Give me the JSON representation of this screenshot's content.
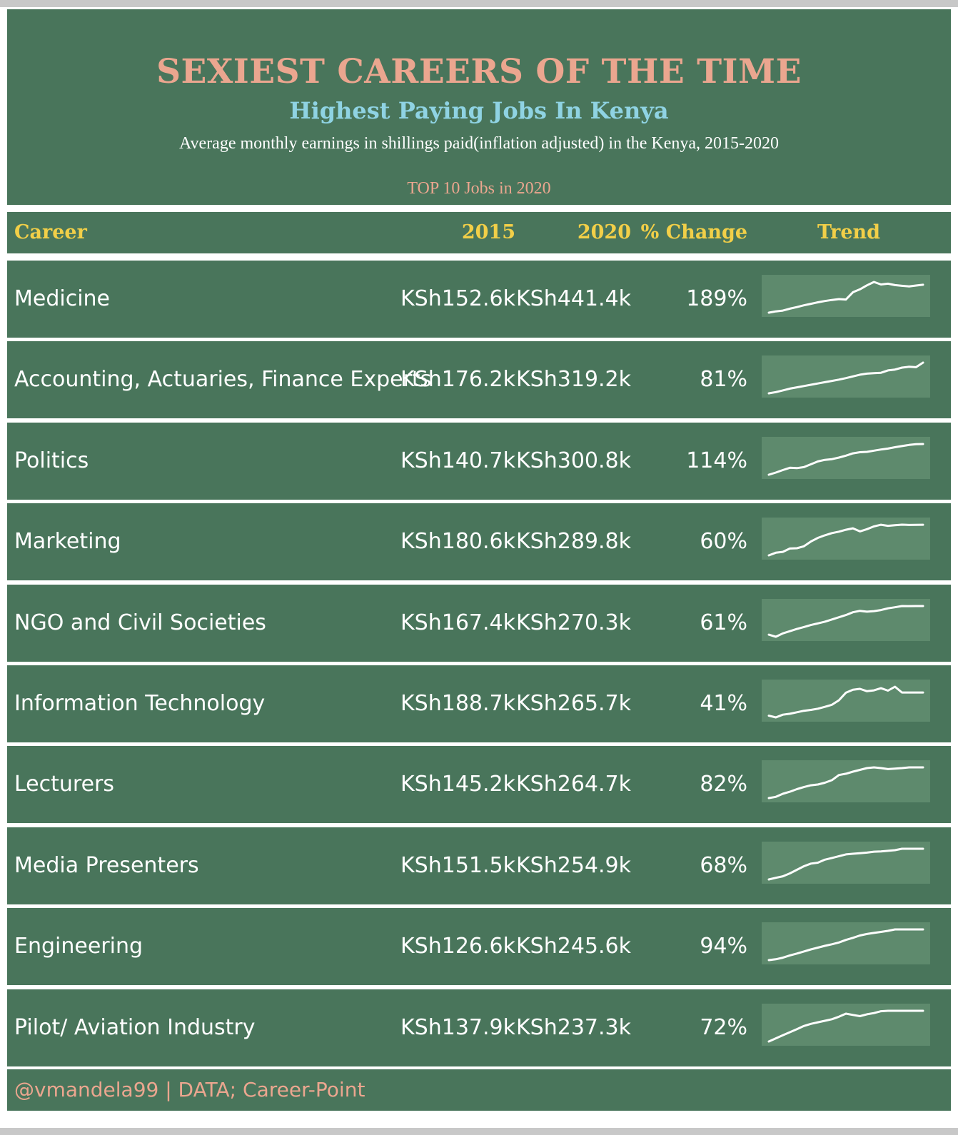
{
  "header": {
    "title": "SEXIEST CAREERS OF THE TIME",
    "subtitle": "Highest Paying Jobs In Kenya",
    "description": "Average monthly earnings in shillings paid(inflation adjusted) in the Kenya, 2015-2020",
    "top_label": "TOP 10 Jobs in 2020"
  },
  "columns": {
    "career": "Career",
    "y2015": "2015",
    "y2020": "2020",
    "change": "% Change",
    "trend": "Trend"
  },
  "footer": "@vmandela99 | DATA; Career-Point",
  "colors": {
    "background": "#49755b",
    "title": "#eba68f",
    "subtitle": "#8fd3e3",
    "column_header": "#f2cf48",
    "sparkline_bg": "#5e8a6d",
    "sparkline_line": "#ffffff"
  },
  "chart_data": {
    "type": "table",
    "title": "SEXIEST CAREERS OF THE TIME",
    "subtitle": "Highest Paying Jobs In Kenya",
    "columns": [
      "Career",
      "2015",
      "2020",
      "% Change",
      "Trend"
    ],
    "rows": [
      {
        "career": "Medicine",
        "y2015": "KSh152.6k",
        "y2020": "KSh441.4k",
        "change": "189%",
        "v2015": 152.6,
        "v2020": 441.4,
        "trend": [
          152.6,
          165,
          172,
          190,
          205,
          222,
          236,
          250,
          262,
          272,
          280,
          276,
          345,
          372,
          410,
          441.4,
          418,
          425,
          412,
          405,
          400,
          408,
          415
        ]
      },
      {
        "career": "Accounting, Actuaries, Finance Experts",
        "y2015": "KSh176.2k",
        "y2020": "KSh319.2k",
        "change": "81%",
        "v2015": 176.2,
        "v2020": 319.2,
        "trend": [
          176.2,
          182,
          190,
          198,
          204,
          210,
          216,
          222,
          228,
          234,
          240,
          247,
          255,
          263,
          268,
          270,
          272,
          283,
          287,
          296,
          300,
          298,
          319.2
        ]
      },
      {
        "career": "Politics",
        "y2015": "KSh140.7k",
        "y2020": "KSh300.8k",
        "change": "114%",
        "v2015": 140.7,
        "v2020": 300.8,
        "trend": [
          140.7,
          152,
          165,
          177,
          175,
          180,
          195,
          210,
          218,
          222,
          230,
          240,
          252,
          258,
          260,
          266,
          272,
          277,
          284,
          290,
          296,
          300,
          300.8
        ]
      },
      {
        "career": "Marketing",
        "y2015": "KSh180.6k",
        "y2020": "KSh289.8k",
        "change": "60%",
        "v2015": 180.6,
        "v2020": 289.8,
        "trend": [
          180.6,
          190,
          193,
          205,
          206,
          213,
          230,
          243,
          252,
          260,
          265,
          272,
          277,
          266,
          274,
          284,
          289.8,
          286,
          288,
          290,
          289,
          289.5,
          289.8
        ]
      },
      {
        "career": "NGO and Civil Societies",
        "y2015": "KSh167.4k",
        "y2020": "KSh270.3k",
        "change": "61%",
        "v2015": 167.4,
        "v2020": 270.3,
        "trend": [
          167.4,
          160,
          172,
          180,
          188,
          195,
          202,
          208,
          214,
          222,
          230,
          238,
          248,
          253,
          250,
          252,
          256,
          262,
          266,
          270.3,
          270,
          270.2,
          270.3
        ]
      },
      {
        "career": "Information Technology",
        "y2015": "KSh188.7k",
        "y2020": "KSh265.7k",
        "change": "41%",
        "v2015": 188.7,
        "v2020": 265.7,
        "trend": [
          188.7,
          183,
          192,
          195,
          200,
          205,
          208,
          212,
          218,
          225,
          240,
          265,
          275,
          278,
          270,
          273,
          280,
          272,
          285,
          265.7,
          265.7,
          265.7,
          265.7
        ]
      },
      {
        "career": "Lecturers",
        "y2015": "KSh145.2k",
        "y2020": "KSh264.7k",
        "change": "82%",
        "v2015": 145.2,
        "v2020": 264.7,
        "trend": [
          145.2,
          150,
          162,
          170,
          180,
          188,
          195,
          198,
          205,
          215,
          235,
          240,
          248,
          255,
          262,
          264.7,
          262,
          258,
          260,
          262,
          264.7,
          264.7,
          264.7
        ]
      },
      {
        "career": "Media Presenters",
        "y2015": "KSh151.5k",
        "y2020": "KSh254.9k",
        "change": "68%",
        "v2015": 151.5,
        "v2020": 254.9,
        "trend": [
          151.5,
          157,
          162,
          172,
          184,
          196,
          205,
          208,
          218,
          224,
          230,
          236,
          238,
          240,
          242,
          245,
          246,
          248,
          250,
          254.9,
          254.9,
          254.9,
          254.9
        ]
      },
      {
        "career": "Engineering",
        "y2015": "KSh126.6k",
        "y2020": "KSh245.6k",
        "change": "94%",
        "v2015": 126.6,
        "v2020": 245.6,
        "trend": [
          126.6,
          130,
          136,
          145,
          152,
          160,
          168,
          175,
          182,
          188,
          195,
          205,
          213,
          222,
          228,
          232,
          236,
          240,
          245.6,
          245.6,
          245.6,
          245.6,
          245.6
        ]
      },
      {
        "career": "Pilot/ Aviation Industry",
        "y2015": "KSh137.9k",
        "y2020": "KSh237.3k",
        "change": "72%",
        "v2015": 137.9,
        "v2020": 237.3,
        "trend": [
          137.9,
          148,
          158,
          168,
          178,
          188,
          195,
          200,
          205,
          210,
          218,
          228,
          224,
          220,
          226,
          230,
          236,
          237.3,
          237.3,
          237.3,
          237.3,
          237.3,
          237.3
        ]
      }
    ]
  }
}
